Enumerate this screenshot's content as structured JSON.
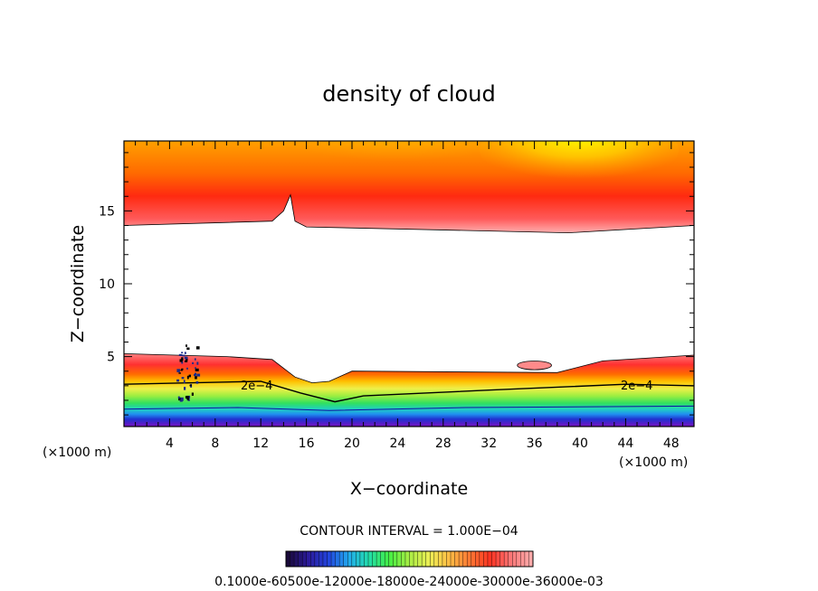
{
  "chart_data": {
    "type": "heatmap",
    "title": "density of cloud",
    "xlabel": "X−coordinate",
    "ylabel": "Z−coordinate",
    "x_unit_left": "(×1000 m)",
    "x_unit_right": "(×1000 m)",
    "xlim": [
      0,
      50
    ],
    "ylim": [
      0.2,
      19.8
    ],
    "x_ticks": [
      4,
      8,
      12,
      16,
      20,
      24,
      28,
      32,
      36,
      40,
      44,
      48
    ],
    "y_ticks": [
      5,
      10,
      15
    ],
    "contour_interval_text": "CONTOUR INTERVAL = 1.000E−04",
    "colorbar_labels_text": "0.1000e-60500e-12000e-18000e-24000e-30000e-36000e-03",
    "contour_label": "2e−4",
    "upper_layer": {
      "base_profile": [
        [
          0,
          14
        ],
        [
          13,
          14.3
        ],
        [
          14,
          15
        ],
        [
          14.6,
          16.1
        ],
        [
          15,
          14.3
        ],
        [
          16,
          13.9
        ],
        [
          39,
          13.5
        ],
        [
          50,
          14
        ]
      ],
      "note_peak_region": [
        34,
        40
      ]
    },
    "lower_layer": {
      "top_profile": [
        [
          0,
          5.2
        ],
        [
          9,
          5.0
        ],
        [
          13,
          4.8
        ],
        [
          15,
          3.6
        ],
        [
          16.5,
          3.2
        ],
        [
          18,
          3.3
        ],
        [
          20,
          4.0
        ],
        [
          38,
          3.9
        ],
        [
          42,
          4.7
        ],
        [
          50,
          5.1
        ]
      ],
      "contour_2e4_profile": [
        [
          0,
          3.1
        ],
        [
          12,
          3.3
        ],
        [
          15.5,
          2.5
        ],
        [
          18.5,
          1.9
        ],
        [
          21,
          2.3
        ],
        [
          32,
          2.7
        ],
        [
          44,
          3.1
        ],
        [
          50,
          3.0
        ]
      ],
      "blue_band_profile": [
        [
          0,
          1.4
        ],
        [
          10,
          1.5
        ],
        [
          18,
          1.3
        ],
        [
          30,
          1.5
        ],
        [
          50,
          1.6
        ]
      ],
      "bottom_profile": [
        [
          0,
          1.0
        ],
        [
          17,
          0.9
        ],
        [
          18.5,
          0.4
        ],
        [
          25,
          0.5
        ],
        [
          50,
          0.8
        ]
      ]
    },
    "small_cloud_patch": {
      "x_range": [
        34.5,
        37.5
      ],
      "z_range": [
        4.1,
        4.7
      ]
    },
    "grid": false,
    "colorbar": {
      "position": "bottom",
      "colors": [
        "#1a0a3a",
        "#2b1a9a",
        "#2244dd",
        "#22aaee",
        "#22ddaa",
        "#44ee44",
        "#aaee44",
        "#eeee55",
        "#ffbb44",
        "#ff7733",
        "#ff3322",
        "#ff7777",
        "#ffaaaa"
      ]
    }
  }
}
